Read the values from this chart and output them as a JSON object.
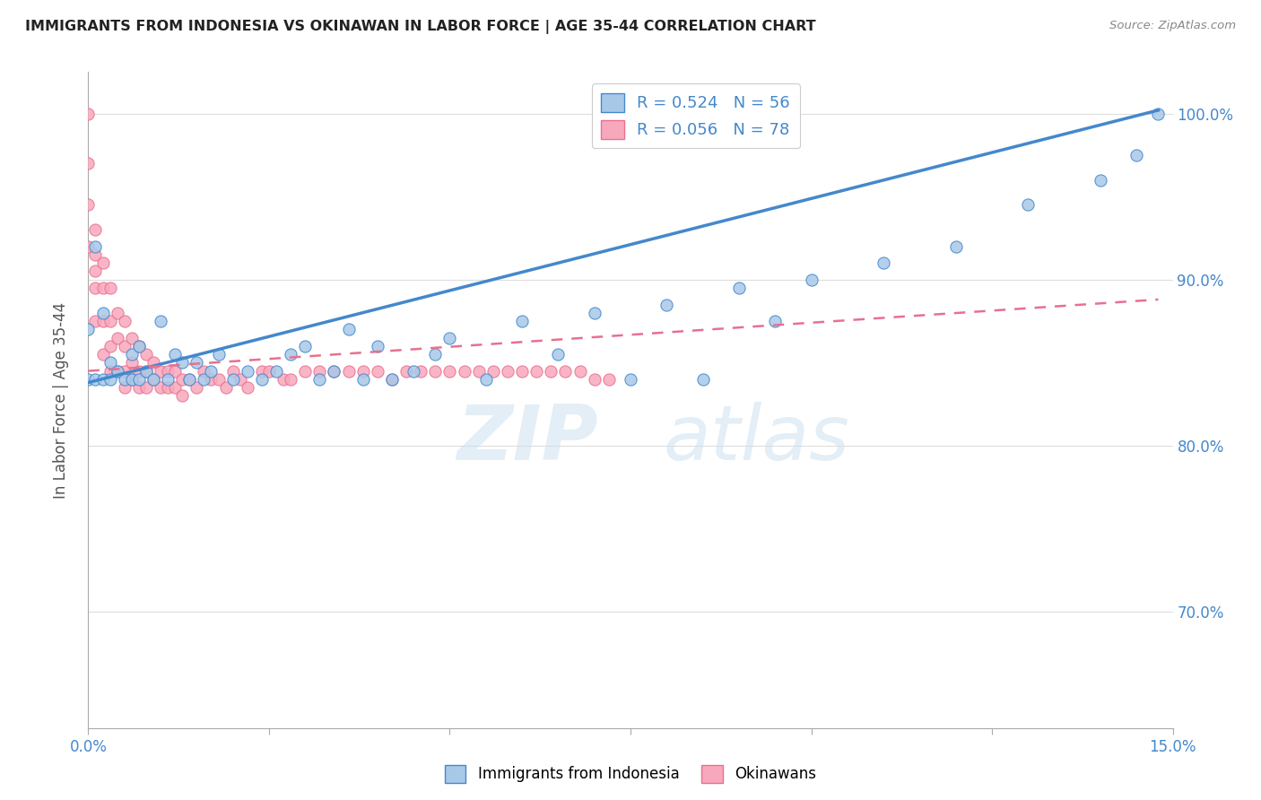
{
  "title": "IMMIGRANTS FROM INDONESIA VS OKINAWAN IN LABOR FORCE | AGE 35-44 CORRELATION CHART",
  "source": "Source: ZipAtlas.com",
  "ylabel": "In Labor Force | Age 35-44",
  "xlim": [
    0.0,
    0.15
  ],
  "ylim": [
    0.63,
    1.025
  ],
  "xticks": [
    0.0,
    0.025,
    0.05,
    0.075,
    0.1,
    0.125,
    0.15
  ],
  "xticklabels": [
    "0.0%",
    "",
    "",
    "",
    "",
    "",
    "15.0%"
  ],
  "yticks": [
    0.7,
    0.8,
    0.9,
    1.0
  ],
  "yticklabels": [
    "70.0%",
    "80.0%",
    "90.0%",
    "100.0%"
  ],
  "watermark_zip": "ZIP",
  "watermark_atlas": "atlas",
  "legend_r1": "R = 0.524",
  "legend_n1": "N = 56",
  "legend_r2": "R = 0.056",
  "legend_n2": "N = 78",
  "color_indonesia": "#a8c8e8",
  "color_okinawan": "#f8a8bc",
  "color_line_indonesia": "#4488cc",
  "color_line_okinawan": "#e87090",
  "indo_line_x": [
    0.0,
    0.148
  ],
  "indo_line_y": [
    0.838,
    1.002
  ],
  "oki_line_x": [
    0.0,
    0.148
  ],
  "oki_line_y": [
    0.845,
    0.888
  ],
  "indonesia_x": [
    0.0,
    0.0,
    0.001,
    0.001,
    0.002,
    0.002,
    0.003,
    0.003,
    0.004,
    0.005,
    0.006,
    0.006,
    0.007,
    0.007,
    0.008,
    0.009,
    0.01,
    0.011,
    0.012,
    0.013,
    0.014,
    0.015,
    0.016,
    0.017,
    0.018,
    0.02,
    0.022,
    0.024,
    0.026,
    0.028,
    0.03,
    0.032,
    0.034,
    0.036,
    0.038,
    0.04,
    0.042,
    0.045,
    0.048,
    0.05,
    0.055,
    0.06,
    0.065,
    0.07,
    0.075,
    0.08,
    0.085,
    0.09,
    0.095,
    0.1,
    0.11,
    0.12,
    0.13,
    0.14,
    0.145,
    0.148
  ],
  "indonesia_y": [
    0.84,
    0.87,
    0.92,
    0.84,
    0.88,
    0.84,
    0.85,
    0.84,
    0.845,
    0.84,
    0.855,
    0.84,
    0.86,
    0.84,
    0.845,
    0.84,
    0.875,
    0.84,
    0.855,
    0.85,
    0.84,
    0.85,
    0.84,
    0.845,
    0.855,
    0.84,
    0.845,
    0.84,
    0.845,
    0.855,
    0.86,
    0.84,
    0.845,
    0.87,
    0.84,
    0.86,
    0.84,
    0.845,
    0.855,
    0.865,
    0.84,
    0.875,
    0.855,
    0.88,
    0.84,
    0.885,
    0.84,
    0.895,
    0.875,
    0.9,
    0.91,
    0.92,
    0.945,
    0.96,
    0.975,
    1.0
  ],
  "okinawan_x": [
    0.0,
    0.0,
    0.0,
    0.0,
    0.001,
    0.001,
    0.001,
    0.001,
    0.001,
    0.002,
    0.002,
    0.002,
    0.002,
    0.003,
    0.003,
    0.003,
    0.003,
    0.004,
    0.004,
    0.004,
    0.005,
    0.005,
    0.005,
    0.005,
    0.006,
    0.006,
    0.006,
    0.007,
    0.007,
    0.007,
    0.008,
    0.008,
    0.008,
    0.009,
    0.009,
    0.01,
    0.01,
    0.011,
    0.011,
    0.012,
    0.012,
    0.013,
    0.013,
    0.014,
    0.015,
    0.016,
    0.017,
    0.018,
    0.019,
    0.02,
    0.021,
    0.022,
    0.024,
    0.025,
    0.027,
    0.028,
    0.03,
    0.032,
    0.034,
    0.036,
    0.038,
    0.04,
    0.042,
    0.044,
    0.046,
    0.048,
    0.05,
    0.052,
    0.054,
    0.056,
    0.058,
    0.06,
    0.062,
    0.064,
    0.066,
    0.068,
    0.07,
    0.072
  ],
  "okinawan_y": [
    1.0,
    0.97,
    0.945,
    0.92,
    0.93,
    0.915,
    0.905,
    0.895,
    0.875,
    0.91,
    0.895,
    0.875,
    0.855,
    0.895,
    0.875,
    0.86,
    0.845,
    0.88,
    0.865,
    0.845,
    0.875,
    0.86,
    0.845,
    0.835,
    0.865,
    0.85,
    0.84,
    0.86,
    0.845,
    0.835,
    0.855,
    0.845,
    0.835,
    0.85,
    0.84,
    0.845,
    0.835,
    0.845,
    0.835,
    0.845,
    0.835,
    0.84,
    0.83,
    0.84,
    0.835,
    0.845,
    0.84,
    0.84,
    0.835,
    0.845,
    0.84,
    0.835,
    0.845,
    0.845,
    0.84,
    0.84,
    0.845,
    0.845,
    0.845,
    0.845,
    0.845,
    0.845,
    0.84,
    0.845,
    0.845,
    0.845,
    0.845,
    0.845,
    0.845,
    0.845,
    0.845,
    0.845,
    0.845,
    0.845,
    0.845,
    0.845,
    0.84,
    0.84
  ]
}
